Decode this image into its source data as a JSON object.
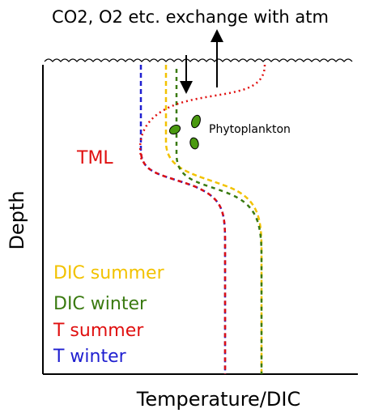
{
  "title": "CO2, O2 etc. exchange with atm",
  "labels": {
    "phytoplankton": "Phytoplankton",
    "tml": "TML",
    "y_axis": "Depth",
    "x_axis": "Temperature/DIC"
  },
  "legend": [
    "DIC summer",
    "DIC winter",
    "T summer",
    "T winter"
  ]
}
